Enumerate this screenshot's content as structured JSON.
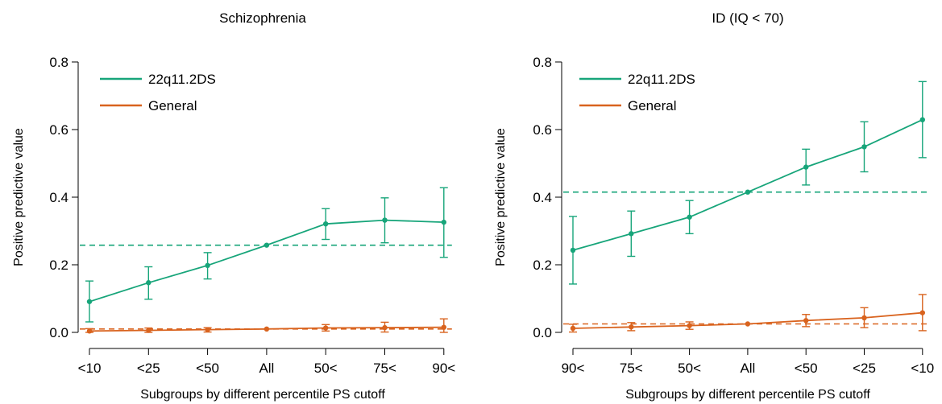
{
  "colors": {
    "green": "#17a57a",
    "orange": "#d9631e",
    "axis": "#000000"
  },
  "chart_data": [
    {
      "type": "line",
      "title": "Schizophrenia",
      "xlabel": "Subgroups by different percentile PS cutoff",
      "ylabel": "Positive predictive value",
      "categories": [
        "<10",
        "<25",
        "<50",
        "All",
        "50<",
        "75<",
        "90<"
      ],
      "ylim": [
        0,
        0.8
      ],
      "yticks": [
        "0.0",
        "0.2",
        "0.4",
        "0.6",
        "0.8"
      ],
      "grid": false,
      "legend_position": "top-left",
      "series": [
        {
          "name": "22q11.2DS",
          "color": "#17a57a",
          "values": [
            0.091,
            0.147,
            0.198,
            0.258,
            0.321,
            0.332,
            0.326
          ],
          "lower": [
            0.031,
            0.098,
            0.158,
            null,
            0.275,
            0.265,
            0.222
          ],
          "upper": [
            0.152,
            0.194,
            0.236,
            null,
            0.366,
            0.398,
            0.428
          ],
          "reference": 0.258
        },
        {
          "name": "General",
          "color": "#d9631e",
          "values": [
            0.004,
            0.006,
            0.008,
            0.01,
            0.013,
            0.014,
            0.015
          ],
          "lower": [
            0.0,
            0.0,
            0.001,
            null,
            0.004,
            0.001,
            0.0
          ],
          "upper": [
            0.011,
            0.013,
            0.014,
            null,
            0.023,
            0.03,
            0.04
          ],
          "reference": 0.01
        }
      ]
    },
    {
      "type": "line",
      "title": "ID (IQ < 70)",
      "xlabel": "Subgroups by different percentile PS cutoff",
      "ylabel": "Positive predictive value",
      "categories": [
        "90<",
        "75<",
        "50<",
        "All",
        "<50",
        "<25",
        "<10"
      ],
      "ylim": [
        0,
        0.8
      ],
      "yticks": [
        "0.0",
        "0.2",
        "0.4",
        "0.6",
        "0.8"
      ],
      "grid": false,
      "legend_position": "top-left",
      "series": [
        {
          "name": "22q11.2DS",
          "color": "#17a57a",
          "values": [
            0.243,
            0.292,
            0.341,
            0.415,
            0.489,
            0.549,
            0.629
          ],
          "lower": [
            0.143,
            0.225,
            0.292,
            null,
            0.436,
            0.475,
            0.517
          ],
          "upper": [
            0.343,
            0.359,
            0.39,
            null,
            0.542,
            0.623,
            0.742
          ],
          "reference": 0.415
        },
        {
          "name": "General",
          "color": "#d9631e",
          "values": [
            0.012,
            0.016,
            0.02,
            0.025,
            0.035,
            0.043,
            0.058
          ],
          "lower": [
            0.001,
            0.005,
            0.009,
            null,
            0.017,
            0.014,
            0.005
          ],
          "upper": [
            0.024,
            0.029,
            0.031,
            null,
            0.053,
            0.073,
            0.112
          ],
          "reference": 0.025
        }
      ]
    }
  ]
}
